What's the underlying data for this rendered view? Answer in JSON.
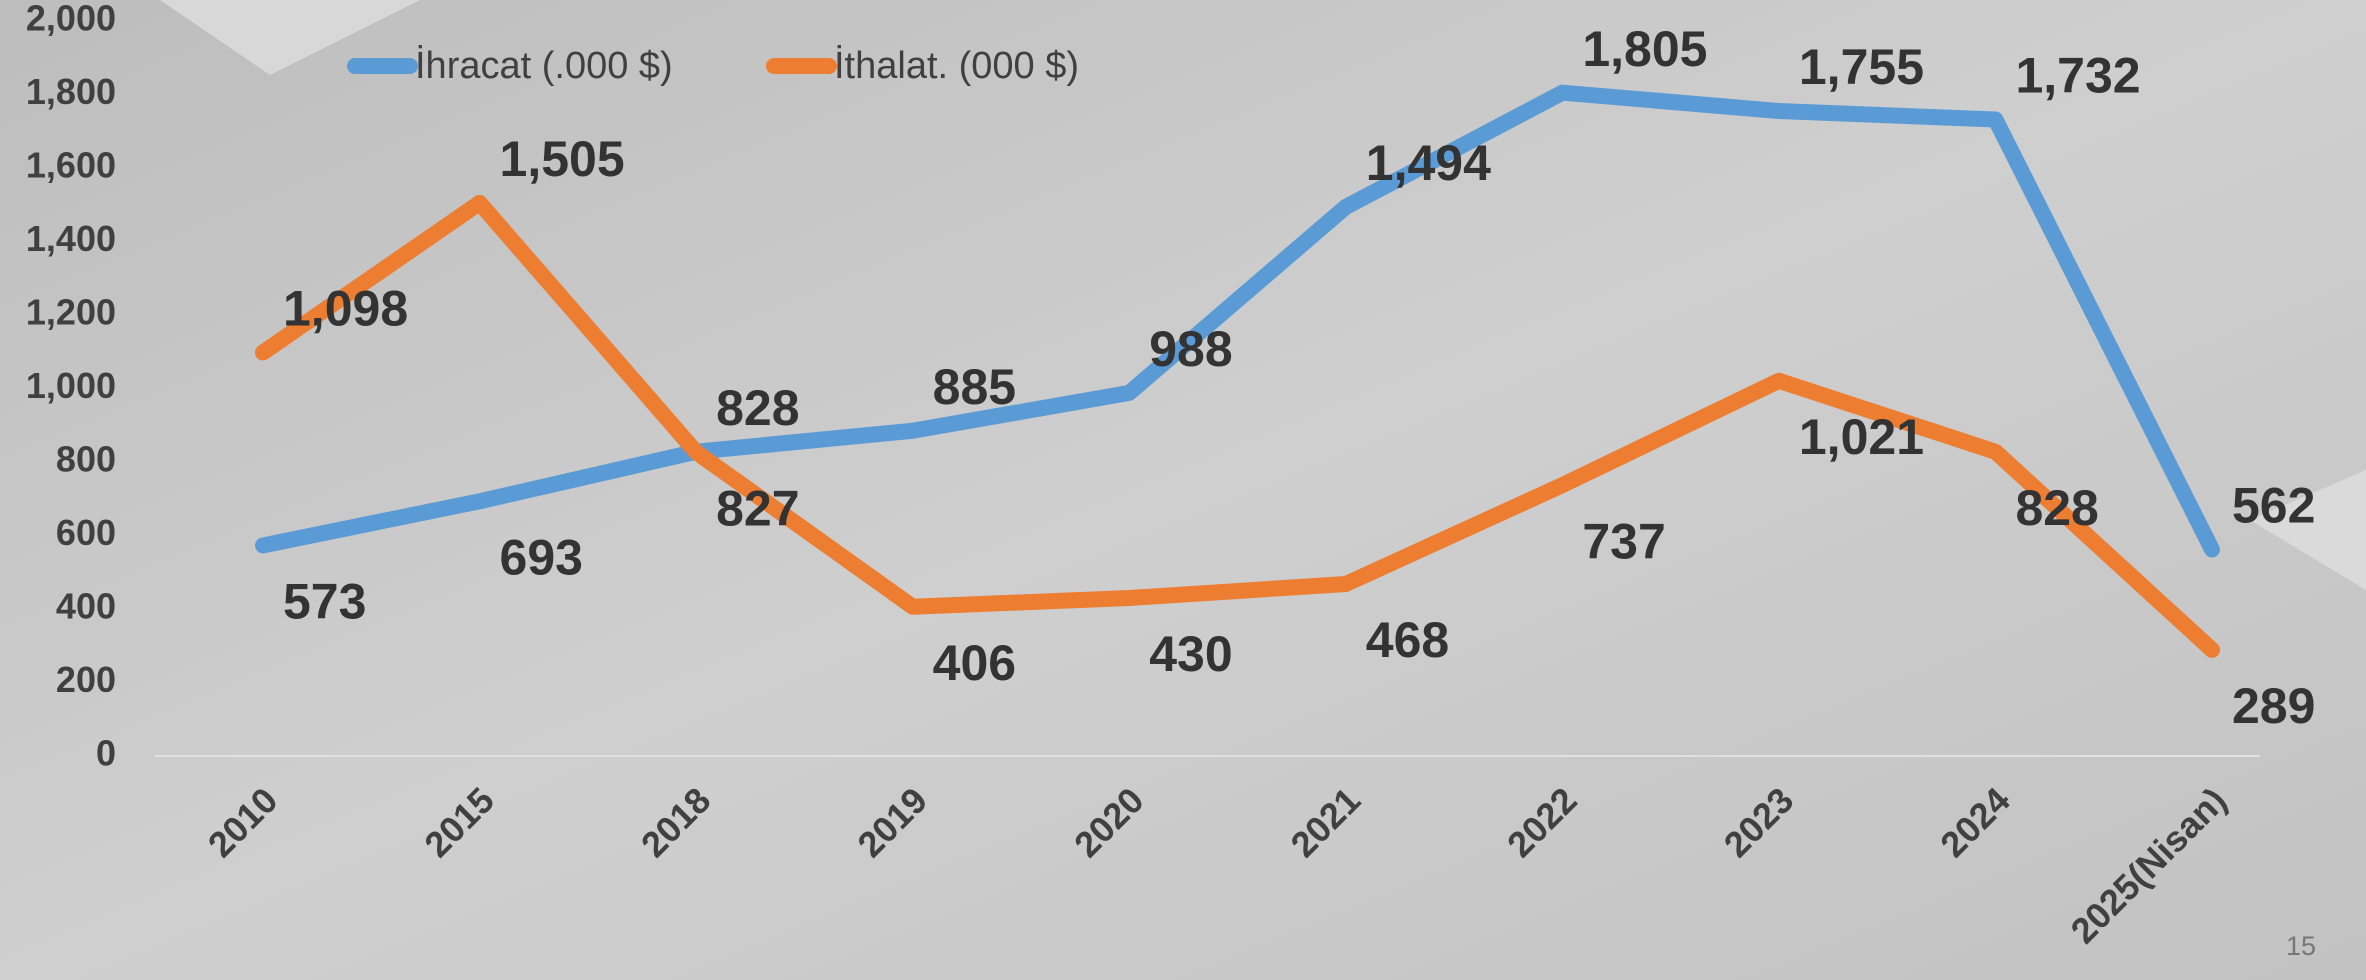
{
  "chart_data": {
    "type": "line",
    "categories": [
      "2010",
      "2015",
      "2018",
      "2019",
      "2020",
      "2021",
      "2022",
      "2023",
      "2024",
      "2025(Nisan)"
    ],
    "series": [
      {
        "name": "İhracat (.000 $)",
        "color": "#5b9bd5",
        "values": [
          573,
          693,
          828,
          885,
          988,
          1494,
          1805,
          1755,
          1732,
          562
        ],
        "value_labels": [
          "573",
          "693",
          "828",
          "885",
          "988",
          "1,494",
          "1,805",
          "1,755",
          "1,732",
          "562"
        ]
      },
      {
        "name": "İthalat. (000 $)",
        "color": "#ed7d31",
        "values": [
          1098,
          1505,
          827,
          406,
          430,
          468,
          737,
          1021,
          828,
          289
        ],
        "value_labels": [
          "1,098",
          "1,505",
          "827",
          "406",
          "430",
          "468",
          "737",
          "1,021",
          "828",
          "289"
        ]
      }
    ],
    "ylim": [
      0,
      2000
    ],
    "yticks": [
      0,
      200,
      400,
      600,
      800,
      {
        "value": 1000,
        "label": "1,000"
      },
      {
        "value": 1200,
        "label": "1,200"
      },
      {
        "value": 1400,
        "label": "1,400"
      },
      {
        "value": 1600,
        "label": "1,600"
      },
      {
        "value": 1800,
        "label": "1,800"
      },
      {
        "value": 2000,
        "label": "2,000"
      }
    ],
    "grid": false,
    "page_number": "15"
  }
}
